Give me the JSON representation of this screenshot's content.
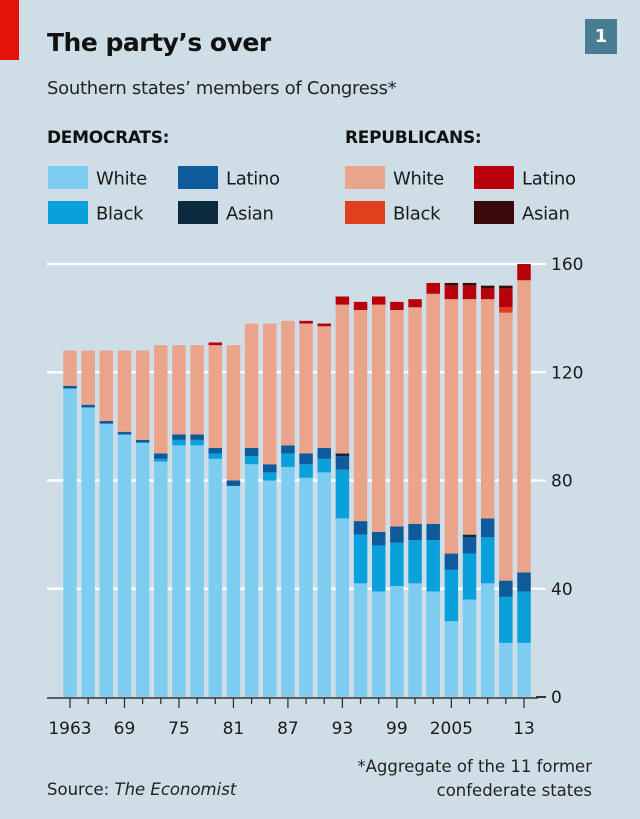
{
  "header": {
    "title": "The party’s over",
    "subtitle": "Southern states’ members of Congress*",
    "badge": "1"
  },
  "legend": {
    "democrats": {
      "heading": "DEMOCRATS:",
      "items": [
        {
          "label": "White",
          "color": "#7ecdf0"
        },
        {
          "label": "Latino",
          "color": "#0e5a9a"
        },
        {
          "label": "Black",
          "color": "#0aa0dc"
        },
        {
          "label": "Asian",
          "color": "#0b2a3e"
        }
      ]
    },
    "republicans": {
      "heading": "REPUBLICANS:",
      "items": [
        {
          "label": "White",
          "color": "#eba48c"
        },
        {
          "label": "Latino",
          "color": "#b8000a"
        },
        {
          "label": "Black",
          "color": "#e0401e"
        },
        {
          "label": "Asian",
          "color": "#3a0a0a"
        }
      ]
    }
  },
  "footer": {
    "source_prefix": "Source: ",
    "source_name": "The Economist",
    "footnote_line1": "*Aggregate of the 11 former",
    "footnote_line2": "confederate states"
  },
  "chart_data": {
    "type": "bar",
    "stacked": true,
    "title": "The party’s over",
    "subtitle": "Southern states’ members of Congress*",
    "xlabel": "",
    "ylabel": "",
    "ylim": [
      0,
      160
    ],
    "yticks": [
      0,
      40,
      80,
      120,
      160
    ],
    "ytick_labels": [
      "0",
      "40",
      "80",
      "120",
      "160"
    ],
    "y_axis_position": "right",
    "grid": true,
    "categories": [
      "1963",
      "1965",
      "1967",
      "1969",
      "1971",
      "1973",
      "1975",
      "1977",
      "1979",
      "1981",
      "1983",
      "1985",
      "1987",
      "1989",
      "1991",
      "1993",
      "1995",
      "1997",
      "1999",
      "2001",
      "2003",
      "2005",
      "2007",
      "2009",
      "2011",
      "2013"
    ],
    "xtick_labels": [
      {
        "category": "1963",
        "label": "1963"
      },
      {
        "category": "1969",
        "label": "69"
      },
      {
        "category": "1975",
        "label": "75"
      },
      {
        "category": "1981",
        "label": "81"
      },
      {
        "category": "1987",
        "label": "87"
      },
      {
        "category": "1993",
        "label": "93"
      },
      {
        "category": "1999",
        "label": "99"
      },
      {
        "category": "2005",
        "label": "2005"
      },
      {
        "category": "2013",
        "label": "13"
      }
    ],
    "series": [
      {
        "name": "Democrats White",
        "color": "#7ecdf0",
        "values": [
          114,
          107,
          101,
          97,
          94,
          87,
          93,
          93,
          88,
          78,
          86,
          80,
          85,
          81,
          83,
          66,
          42,
          39,
          41,
          42,
          39,
          28,
          36,
          42,
          20,
          20
        ]
      },
      {
        "name": "Democrats Black",
        "color": "#0aa0dc",
        "values": [
          0,
          0,
          0,
          0,
          0,
          1,
          2,
          2,
          2,
          0,
          3,
          3,
          5,
          5,
          5,
          18,
          18,
          17,
          16,
          16,
          19,
          19,
          17,
          17,
          17,
          19
        ]
      },
      {
        "name": "Democrats Latino",
        "color": "#0e5a9a",
        "values": [
          1,
          1,
          1,
          1,
          1,
          2,
          2,
          2,
          2,
          2,
          3,
          3,
          3,
          4,
          4,
          5,
          5,
          5,
          6,
          6,
          6,
          6,
          6,
          7,
          6,
          7
        ]
      },
      {
        "name": "Democrats Asian",
        "color": "#0b2a3e",
        "values": [
          0,
          0,
          0,
          0,
          0,
          0,
          0,
          0,
          0,
          0,
          0,
          0,
          0,
          0,
          0,
          1,
          0,
          0,
          0,
          0,
          0,
          0,
          1,
          0,
          0,
          0
        ]
      },
      {
        "name": "Republicans White",
        "color": "#eba48c",
        "values": [
          13,
          20,
          26,
          30,
          33,
          40,
          33,
          33,
          38,
          50,
          46,
          52,
          46,
          48,
          45,
          55,
          78,
          84,
          80,
          80,
          85,
          94,
          87,
          81,
          99,
          108
        ]
      },
      {
        "name": "Republicans Black",
        "color": "#e0401e",
        "values": [
          0,
          0,
          0,
          0,
          0,
          0,
          0,
          0,
          0,
          0,
          0,
          0,
          0,
          0,
          0,
          0,
          0,
          0,
          0,
          0,
          0,
          0,
          0,
          0,
          2,
          0
        ]
      },
      {
        "name": "Republicans Latino",
        "color": "#b8000a",
        "values": [
          0,
          0,
          0,
          0,
          0,
          0,
          0,
          0,
          1,
          0,
          0,
          0,
          0,
          1,
          1,
          3,
          3,
          3,
          3,
          3,
          4,
          5,
          5,
          4,
          7,
          6
        ]
      },
      {
        "name": "Republicans Asian",
        "color": "#3a0a0a",
        "values": [
          0,
          0,
          0,
          0,
          0,
          0,
          0,
          0,
          0,
          0,
          0,
          0,
          0,
          0,
          0,
          0,
          0,
          0,
          0,
          0,
          0,
          1,
          1,
          1,
          1,
          0
        ]
      }
    ],
    "legend_placement": "top"
  }
}
